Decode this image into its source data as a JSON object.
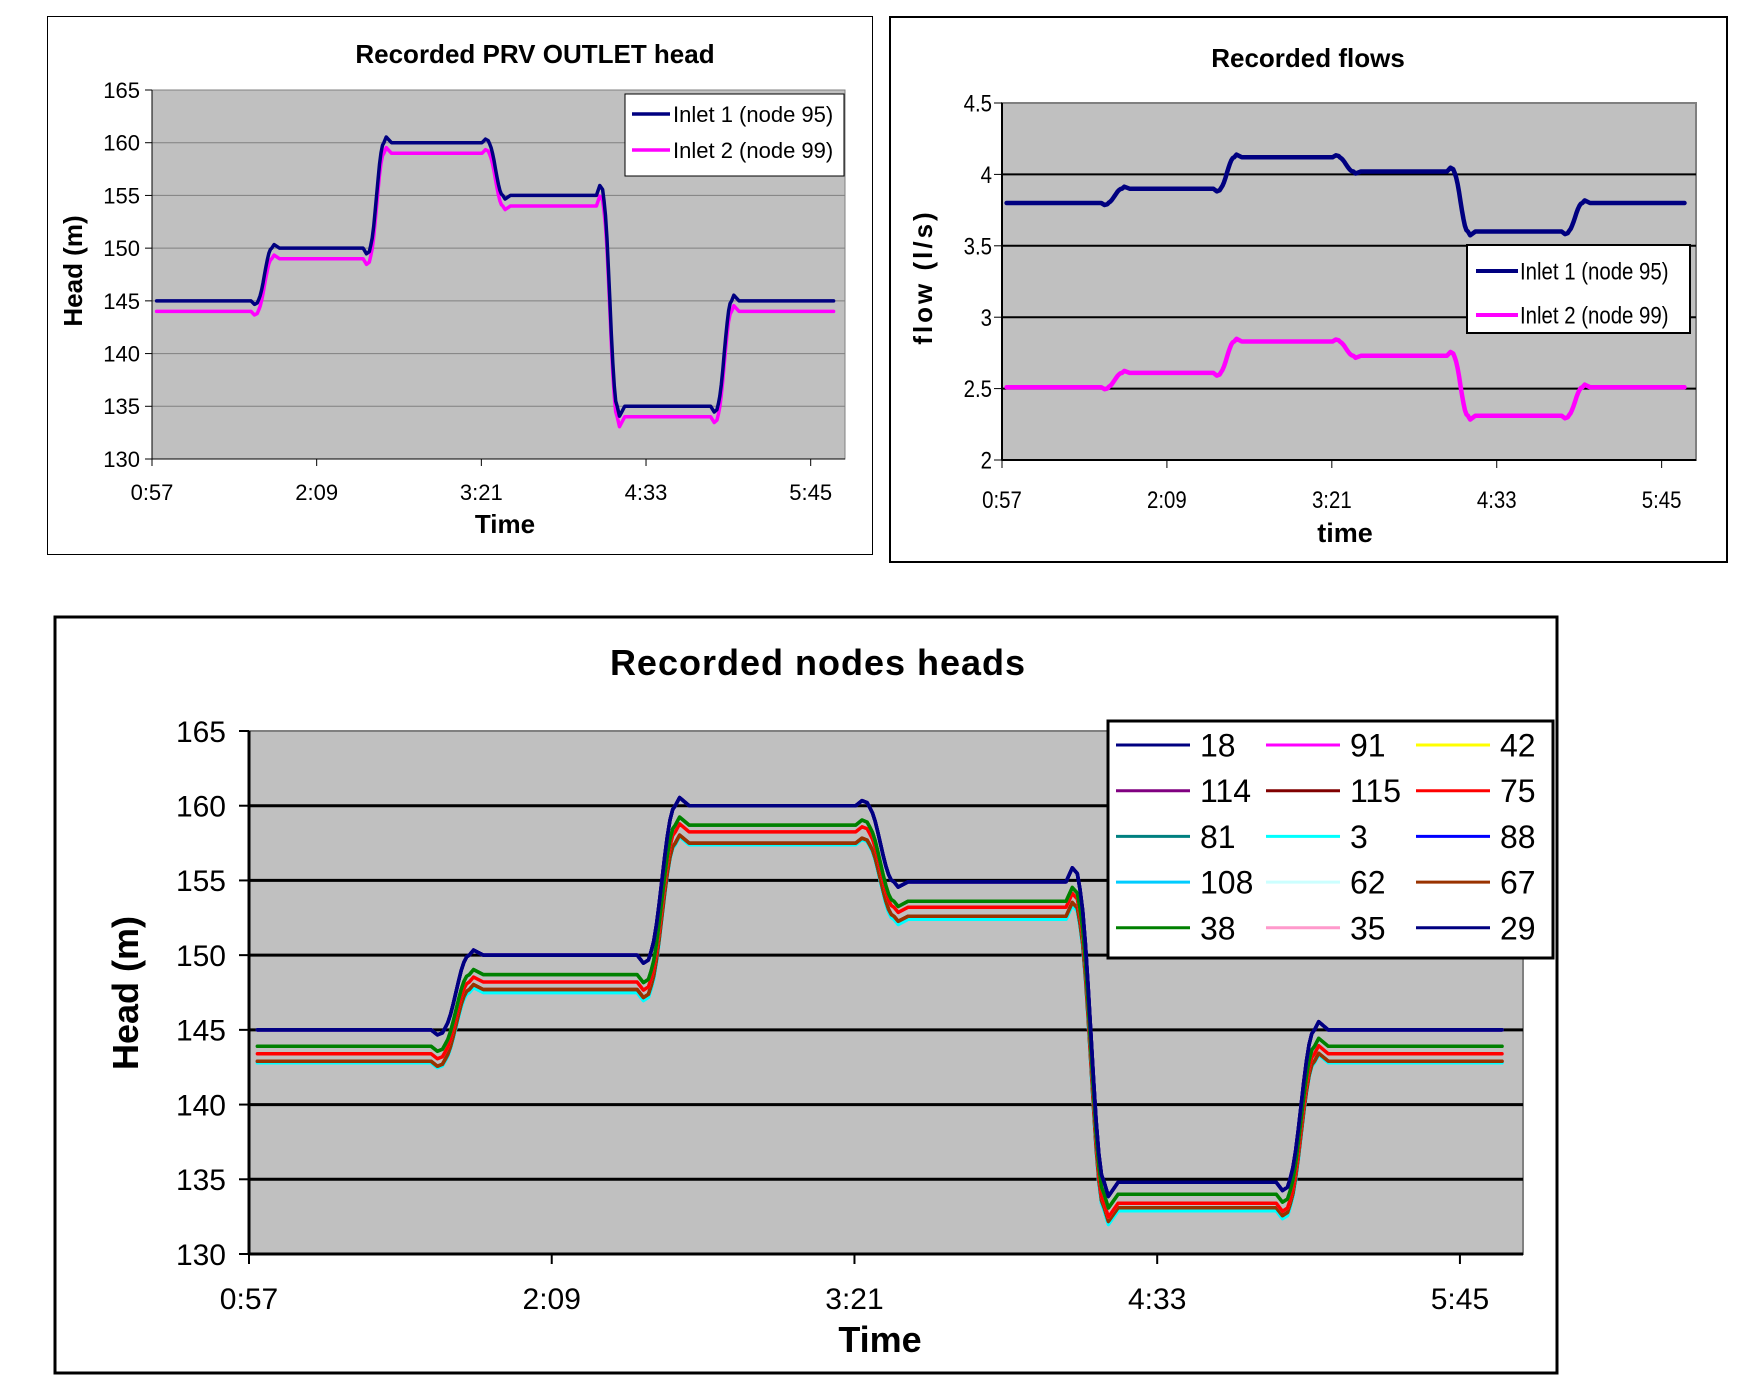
{
  "chart_data": [
    {
      "id": "prv",
      "type": "line",
      "title": "Recorded PRV OUTLET head",
      "xlabel": "Time",
      "ylabel": "Head (m)",
      "ylim": [
        130,
        165
      ],
      "yticks": [
        130,
        135,
        140,
        145,
        150,
        155,
        160,
        165
      ],
      "xlim_minutes": [
        57,
        360
      ],
      "xticks": [
        {
          "label": "0:57",
          "minutes": 57
        },
        {
          "label": "2:09",
          "minutes": 129
        },
        {
          "label": "3:21",
          "minutes": 201
        },
        {
          "label": "4:33",
          "minutes": 273
        },
        {
          "label": "5:45",
          "minutes": 345
        }
      ],
      "grid": true,
      "legend_position": "top-right",
      "step_times_minutes": [
        106,
        155,
        207,
        257,
        307
      ],
      "data_range_minutes": [
        59,
        355
      ],
      "series": [
        {
          "name": "Inlet 1 (node 95)",
          "color": "#000080",
          "levels": [
            145,
            150,
            160,
            155,
            135,
            145
          ]
        },
        {
          "name": "Inlet 2 (node 99)",
          "color": "#ff00ff",
          "levels": [
            144,
            149,
            159,
            154,
            134,
            144
          ]
        }
      ]
    },
    {
      "id": "flows",
      "type": "line",
      "title": "Recorded flows",
      "xlabel": "time",
      "ylabel": "flow (l/s)",
      "ylim": [
        2,
        4.5
      ],
      "yticks": [
        2,
        2.5,
        3,
        3.5,
        4,
        4.5
      ],
      "xlim_minutes": [
        57,
        360
      ],
      "xticks": [
        {
          "label": "0:57",
          "minutes": 57
        },
        {
          "label": "2:09",
          "minutes": 129
        },
        {
          "label": "3:21",
          "minutes": 201
        },
        {
          "label": "4:33",
          "minutes": 273
        },
        {
          "label": "5:45",
          "minutes": 345
        }
      ],
      "grid": true,
      "legend_position": "right",
      "step_times_minutes": [
        106,
        155,
        207,
        257,
        307
      ],
      "data_range_minutes": [
        59,
        355
      ],
      "series": [
        {
          "name": "Inlet 1 (node 95)",
          "color": "#000080",
          "levels": [
            3.8,
            3.9,
            4.12,
            4.02,
            3.6,
            3.8
          ]
        },
        {
          "name": "Inlet 2 (node 99)",
          "color": "#ff00ff",
          "levels": [
            2.51,
            2.61,
            2.83,
            2.73,
            2.31,
            2.51
          ]
        }
      ]
    },
    {
      "id": "nodes",
      "type": "line",
      "title": "Recorded nodes heads",
      "xlabel": "Time",
      "ylabel": "Head (m)",
      "ylim": [
        130,
        165
      ],
      "yticks": [
        130,
        135,
        140,
        145,
        150,
        155,
        160,
        165
      ],
      "xlim_minutes": [
        57,
        360
      ],
      "xticks": [
        {
          "label": "0:57",
          "minutes": 57
        },
        {
          "label": "2:09",
          "minutes": 129
        },
        {
          "label": "3:21",
          "minutes": 201
        },
        {
          "label": "4:33",
          "minutes": 273
        },
        {
          "label": "5:45",
          "minutes": 345
        }
      ],
      "grid": true,
      "legend_position": "top-right",
      "step_times_minutes": [
        106,
        155,
        207,
        257,
        307
      ],
      "data_range_minutes": [
        59,
        355
      ],
      "series": [
        {
          "name": "18",
          "color": "#000080",
          "levels": [
            145,
            150,
            160,
            154.9,
            134.8,
            145
          ]
        },
        {
          "name": "91",
          "color": "#ff00ff",
          "levels": [
            145,
            150,
            160,
            154.9,
            134.8,
            145
          ]
        },
        {
          "name": "42",
          "color": "#ffff00",
          "levels": [
            143.9,
            148.7,
            158.7,
            153.6,
            134.0,
            143.9
          ]
        },
        {
          "name": "114",
          "color": "#800080",
          "levels": [
            145,
            150,
            160,
            154.9,
            134.8,
            145
          ]
        },
        {
          "name": "115",
          "color": "#800000",
          "levels": [
            142.9,
            147.7,
            157.5,
            152.6,
            133.1,
            142.9
          ]
        },
        {
          "name": "75",
          "color": "#ff0000",
          "levels": [
            143.4,
            148.2,
            158.25,
            153.2,
            133.4,
            143.4
          ]
        },
        {
          "name": "81",
          "color": "#008080",
          "levels": [
            143.9,
            148.7,
            158.7,
            153.6,
            134.0,
            143.9
          ]
        },
        {
          "name": "3",
          "color": "#00ffff",
          "levels": [
            142.8,
            147.5,
            157.4,
            152.4,
            132.9,
            142.8
          ]
        },
        {
          "name": "88",
          "color": "#0000ff",
          "levels": [
            145,
            150,
            160,
            154.9,
            134.8,
            145
          ]
        },
        {
          "name": "108",
          "color": "#00ccff",
          "levels": [
            142.8,
            147.5,
            157.4,
            152.4,
            132.9,
            142.8
          ]
        },
        {
          "name": "62",
          "color": "#ccffff",
          "levels": [
            142.8,
            147.5,
            157.4,
            152.4,
            132.9,
            142.8
          ]
        },
        {
          "name": "67",
          "color": "#993300",
          "levels": [
            142.9,
            147.7,
            157.5,
            152.6,
            133.1,
            142.9
          ]
        },
        {
          "name": "38",
          "color": "#008000",
          "levels": [
            143.9,
            148.7,
            158.7,
            153.6,
            134.0,
            143.9
          ]
        },
        {
          "name": "35",
          "color": "#ff99cc",
          "levels": [
            143.4,
            148.2,
            158.25,
            153.2,
            133.4,
            143.4
          ]
        },
        {
          "name": "29",
          "color": "#000080",
          "levels": [
            145,
            150,
            160,
            154.9,
            134.8,
            145
          ]
        }
      ]
    }
  ]
}
